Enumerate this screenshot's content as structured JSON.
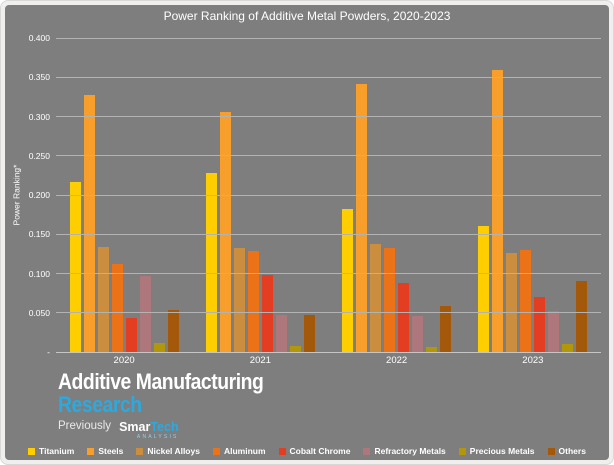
{
  "chart_data": {
    "type": "bar",
    "title": "Power Ranking of Additive Metal Powders, 2020-2023",
    "ylabel": "Power Ranking*",
    "xlabel": "",
    "categories": [
      "2020",
      "2021",
      "2022",
      "2023"
    ],
    "series": [
      {
        "name": "Titanium",
        "color": "#FFCE00",
        "values": [
          0.216,
          0.228,
          0.182,
          0.16
        ]
      },
      {
        "name": "Steels",
        "color": "#F89F2B",
        "values": [
          0.327,
          0.306,
          0.342,
          0.359
        ]
      },
      {
        "name": "Nickel Alloys",
        "color": "#CB8D3E",
        "values": [
          0.134,
          0.133,
          0.137,
          0.126
        ]
      },
      {
        "name": "Aluminum",
        "color": "#EC7217",
        "values": [
          0.112,
          0.129,
          0.132,
          0.13
        ]
      },
      {
        "name": "Cobalt Chrome",
        "color": "#E33D22",
        "values": [
          0.043,
          0.098,
          0.088,
          0.07
        ]
      },
      {
        "name": "Refractory Metals",
        "color": "#AE777B",
        "values": [
          0.097,
          0.047,
          0.046,
          0.052
        ]
      },
      {
        "name": "Precious Metals",
        "color": "#B3970B",
        "values": [
          0.012,
          0.008,
          0.007,
          0.01
        ]
      },
      {
        "name": "Others",
        "color": "#A4590A",
        "values": [
          0.053,
          0.047,
          0.058,
          0.09
        ]
      }
    ],
    "ylim": [
      0,
      0.4
    ],
    "yticks": [
      {
        "value": 0.4,
        "label": "0.400"
      },
      {
        "value": 0.35,
        "label": "0.350"
      },
      {
        "value": 0.3,
        "label": "0.300"
      },
      {
        "value": 0.25,
        "label": "0.250"
      },
      {
        "value": 0.2,
        "label": "0.200"
      },
      {
        "value": 0.15,
        "label": "0.150"
      },
      {
        "value": 0.1,
        "label": "0.100"
      },
      {
        "value": 0.05,
        "label": "0.050"
      },
      {
        "value": 0.0,
        "label": "-"
      }
    ],
    "grid": true,
    "legend_position": "bottom",
    "background_color": "#7e7e7e",
    "text_color": "#ffffff"
  },
  "logo": {
    "line1": "Additive Manufacturing",
    "line2": "Research",
    "previously": "Previously",
    "brand_part1": "Smar",
    "brand_part2": "Tech",
    "brand_sub": "ANALYSIS",
    "accent_color": "#29abe2"
  }
}
